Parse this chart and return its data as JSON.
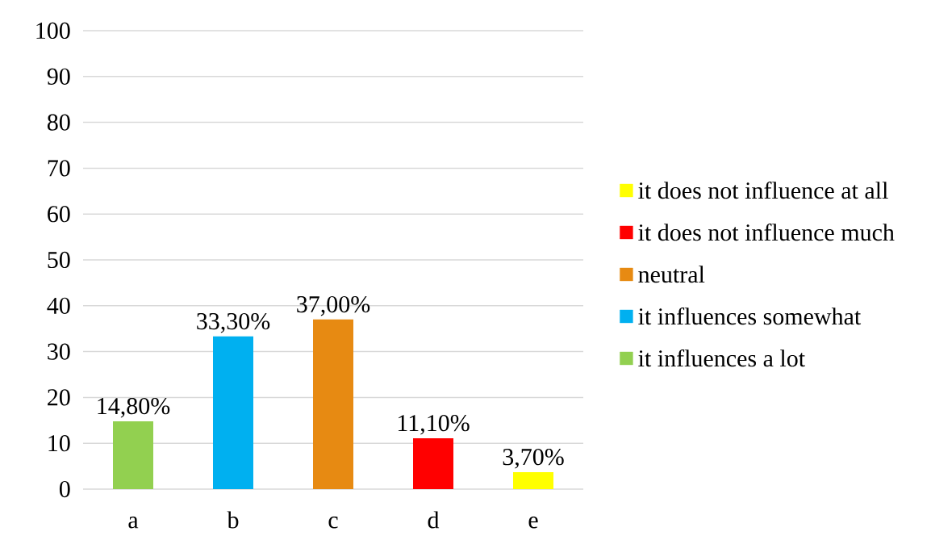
{
  "chart_data": {
    "type": "bar",
    "categories": [
      "a",
      "b",
      "c",
      "d",
      "e"
    ],
    "series": [
      {
        "name": "it does not influence at all",
        "color": "#ffff00",
        "values": [
          null,
          null,
          null,
          null,
          3.7
        ],
        "value_labels": [
          null,
          null,
          null,
          null,
          "3,70%"
        ]
      },
      {
        "name": "it does not influence much",
        "color": "#ff0000",
        "values": [
          null,
          null,
          null,
          11.1,
          null
        ],
        "value_labels": [
          null,
          null,
          null,
          "11,10%",
          null
        ]
      },
      {
        "name": "neutral",
        "color": "#e78a12",
        "values": [
          null,
          null,
          37.0,
          null,
          null
        ],
        "value_labels": [
          null,
          null,
          "37,00%",
          null,
          null
        ]
      },
      {
        "name": "it influences somewhat",
        "color": "#00b0f0",
        "values": [
          null,
          33.3,
          null,
          null,
          null
        ],
        "value_labels": [
          null,
          "33,30%",
          null,
          null,
          null
        ]
      },
      {
        "name": "it influences a lot",
        "color": "#92d050",
        "values": [
          14.8,
          null,
          null,
          null,
          null
        ],
        "value_labels": [
          "14,80%",
          null,
          null,
          null,
          null
        ]
      }
    ],
    "ylim": [
      0,
      100
    ],
    "yticks": [
      0,
      10,
      20,
      30,
      40,
      50,
      60,
      70,
      80,
      90,
      100
    ],
    "grid": "y",
    "legend": "right"
  }
}
